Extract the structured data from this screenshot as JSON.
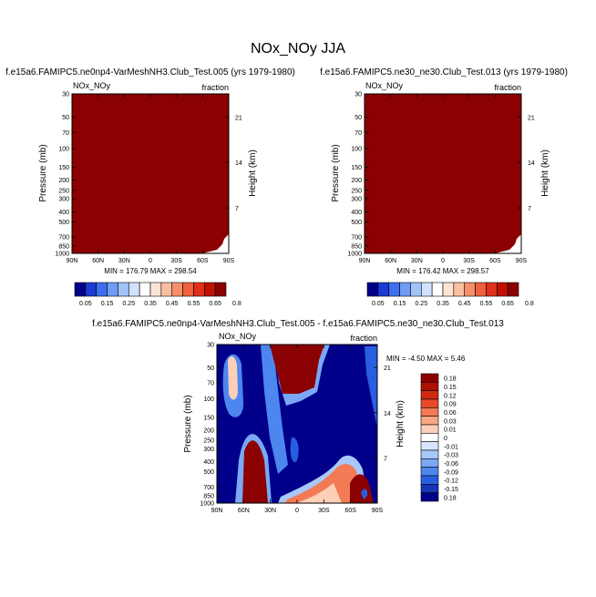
{
  "main_title": "NOx_NOy JJA",
  "colors": {
    "panel_fill": "#8b0000",
    "diff_background": "#00008b",
    "diff_positive": "#8b0000"
  },
  "chart_data": [
    {
      "type": "heatmap",
      "title": "f.e15a6.FAMIPC5.ne0np4-VarMeshNH3.Club_Test.005 (yrs 1979-1980)",
      "left_label": "NOx_NOy",
      "right_label": "fraction",
      "ylabel": "Pressure (mb)",
      "ylabel_right": "Height (km)",
      "x_ticks": [
        "90N",
        "60N",
        "30N",
        "0",
        "30S",
        "60S",
        "90S"
      ],
      "y_ticks": [
        "30",
        "50",
        "70",
        "100",
        "150",
        "200",
        "250",
        "300",
        "400",
        "500",
        "700",
        "850",
        "1000"
      ],
      "height_ticks": [
        "21",
        "14",
        "7"
      ],
      "stats": "MIN = 176.79   MAX = 298.54",
      "colorbar": [
        "0.05",
        "0.15",
        "0.25",
        "0.35",
        "0.45",
        "0.55",
        "0.65",
        "0.8"
      ],
      "colorbar_colors": [
        "#00008b",
        "#1c3ad4",
        "#3d6ff0",
        "#6d9bf5",
        "#a0c3fa",
        "#d0e2fd",
        "#ffffff",
        "#fde3d4",
        "#fbbfa0",
        "#f7906a",
        "#f0603c",
        "#e0301a",
        "#c01000",
        "#8b0000"
      ]
    },
    {
      "type": "heatmap",
      "title": "f.e15a6.FAMIPC5.ne30_ne30.Club_Test.013 (yrs 1979-1980)",
      "left_label": "NOx_NOy",
      "right_label": "fraction",
      "ylabel": "Pressure (mb)",
      "ylabel_right": "Height (km)",
      "x_ticks": [
        "90N",
        "60N",
        "30N",
        "0",
        "30S",
        "60S",
        "90S"
      ],
      "y_ticks": [
        "30",
        "50",
        "70",
        "100",
        "150",
        "200",
        "250",
        "300",
        "400",
        "500",
        "700",
        "850",
        "1000"
      ],
      "height_ticks": [
        "21",
        "14",
        "7"
      ],
      "stats": "MIN = 176.42   MAX = 298.57",
      "colorbar": [
        "0.05",
        "0.15",
        "0.25",
        "0.35",
        "0.45",
        "0.55",
        "0.65",
        "0.8"
      ]
    },
    {
      "type": "heatmap",
      "title": "f.e15a6.FAMIPC5.ne0np4-VarMeshNH3.Club_Test.005 - f.e15a6.FAMIPC5.ne30_ne30.Club_Test.013",
      "left_label": "NOx_NOy",
      "right_label": "fraction",
      "ylabel": "Pressure (mb)",
      "ylabel_right": "Height (km)",
      "x_ticks": [
        "90N",
        "60N",
        "30N",
        "0",
        "30S",
        "60S",
        "90S"
      ],
      "y_ticks": [
        "30",
        "50",
        "70",
        "100",
        "150",
        "200",
        "250",
        "300",
        "400",
        "500",
        "700",
        "850",
        "1000"
      ],
      "height_ticks": [
        "21",
        "14",
        "7"
      ],
      "stats": "MIN =  -4.50   MAX =   5.46",
      "colorbar": [
        "0.18",
        "0.15",
        "0.12",
        "0.09",
        "0.06",
        "0.03",
        "0.01",
        "0",
        "-0.01",
        "-0.03",
        "-0.06",
        "-0.09",
        "-0.12",
        "-0.15",
        "0.18"
      ],
      "colorbar_colors": [
        "#8b0000",
        "#b01000",
        "#d02a10",
        "#e84a28",
        "#f27a54",
        "#f8a882",
        "#fcd0b8",
        "#ffffff",
        "#d6e6fd",
        "#a8c8fa",
        "#7aa8f5",
        "#4c86ee",
        "#2a5ee0",
        "#1534b8",
        "#00008b"
      ]
    }
  ]
}
